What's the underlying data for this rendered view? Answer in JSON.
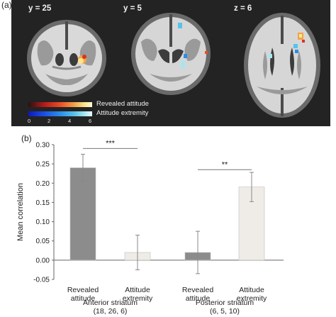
{
  "panel_a": {
    "label": "(a)",
    "slices": [
      {
        "label": "y = 25"
      },
      {
        "label": "y = 5"
      },
      {
        "label": "z = 6"
      }
    ],
    "colorbar": {
      "hot_label": "Revealed attitude",
      "cool_label": "Attitude extremity",
      "ticks": [
        "0",
        "2",
        "4",
        "6"
      ],
      "hot_color": "#f3a248",
      "cool_color": "#2b8ee8"
    }
  },
  "panel_b": {
    "label": "(b)",
    "significance": {
      "left": "***",
      "right": "**"
    }
  },
  "chart_data": {
    "type": "bar",
    "ylabel": "Mean correlation",
    "ylim": [
      -0.05,
      0.3
    ],
    "yticks": [
      "-0.05",
      "0.00",
      "0.05",
      "0.10",
      "0.15",
      "0.20",
      "0.25",
      "0.30"
    ],
    "categories": [
      "Revealed attitude",
      "Attitude extremity",
      "Revealed attitude",
      "Attitude extremity"
    ],
    "category_lines": [
      [
        "Revealed",
        "attitude"
      ],
      [
        "Attitude",
        "extremity"
      ],
      [
        "Revealed",
        "attitude"
      ],
      [
        "Attitude",
        "extremity"
      ]
    ],
    "values": [
      0.24,
      0.02,
      0.02,
      0.19
    ],
    "errors": [
      0.035,
      0.045,
      0.055,
      0.038
    ],
    "bar_colors": [
      "#8c8c8c",
      "#efece8",
      "#8c8c8c",
      "#efece8"
    ],
    "groups": [
      {
        "name_lines": [
          "Anterior striatum",
          "(18, 26, 6)"
        ],
        "bars": [
          0,
          1
        ]
      },
      {
        "name_lines": [
          "Posterior striatum",
          "(6, 5, 10)"
        ],
        "bars": [
          2,
          3
        ]
      }
    ],
    "grid": false,
    "legend": "none"
  }
}
